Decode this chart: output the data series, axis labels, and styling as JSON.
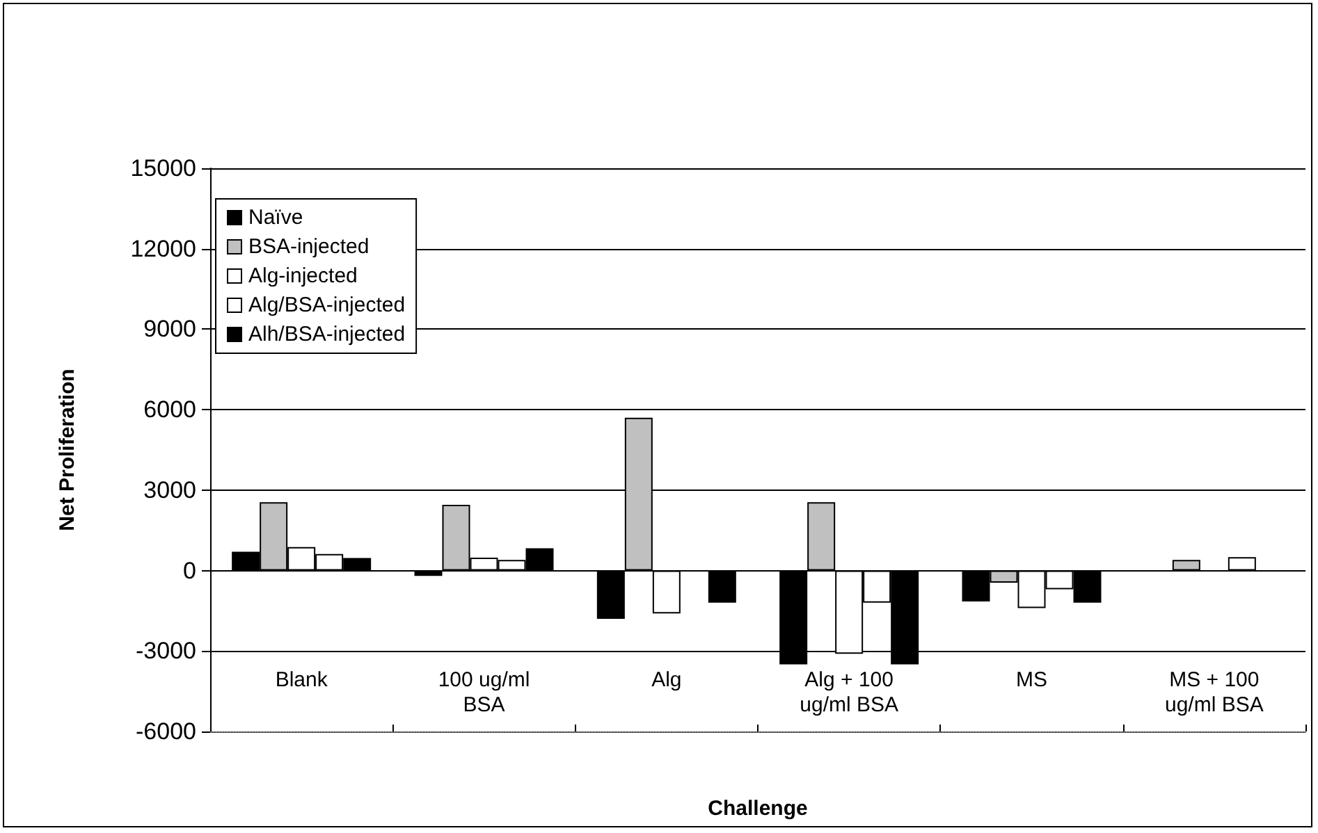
{
  "chart_data": {
    "type": "bar",
    "xlabel": "Challenge",
    "ylabel": "Net Proliferation",
    "categories": [
      "Blank",
      "100 ug/ml\nBSA",
      "Alg",
      "Alg + 100\nug/ml BSA",
      "MS",
      "MS + 100\nug/ml BSA"
    ],
    "series": [
      {
        "name": "Naïve",
        "color": "#000000",
        "values": [
          700,
          -200,
          -1800,
          -3500,
          -1150,
          null
        ]
      },
      {
        "name": "BSA-injected",
        "color": "#c0c0c0",
        "values": [
          2550,
          2450,
          5700,
          2550,
          -450,
          400
        ]
      },
      {
        "name": "Alg-injected",
        "color": "#ffffff",
        "values": [
          880,
          480,
          -1600,
          -3100,
          -1400,
          null
        ]
      },
      {
        "name": "Alg/BSA-injected",
        "color": "#ffffff",
        "values": [
          620,
          400,
          null,
          -1200,
          -700,
          500
        ]
      },
      {
        "name": "Alh/BSA-injected",
        "color": "#000000",
        "values": [
          470,
          830,
          -1200,
          -3500,
          -1200,
          null
        ]
      }
    ],
    "ylim": [
      -6000,
      15000
    ],
    "yticks": [
      -6000,
      -3000,
      0,
      3000,
      6000,
      9000,
      12000,
      15000
    ],
    "grid": "y",
    "legend": "top left"
  }
}
